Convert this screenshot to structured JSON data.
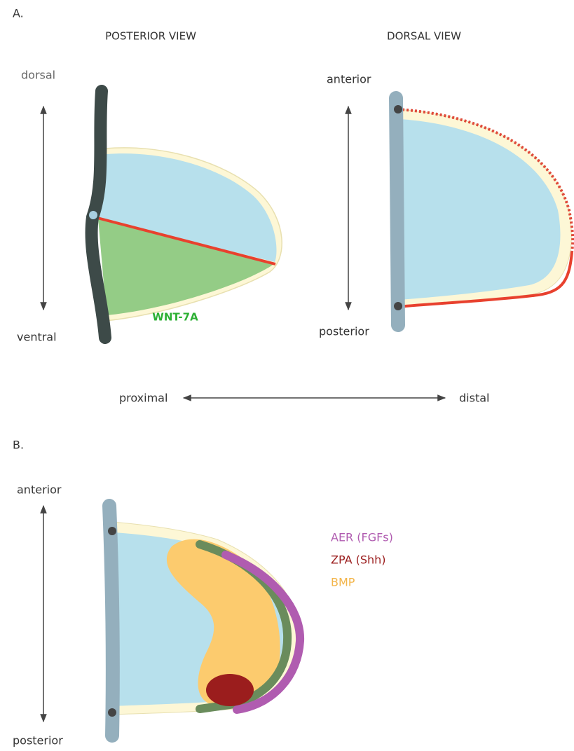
{
  "panel_a": {
    "label": "A.",
    "posterior_view": {
      "title": "POSTERIOR VIEW",
      "top": "dorsal",
      "bottom": "ventral",
      "marker": "WNT-7A"
    },
    "dorsal_view": {
      "title": "DORSAL VIEW",
      "top": "anterior",
      "bottom": "posterior"
    },
    "axis": {
      "left": "proximal",
      "right": "distal"
    }
  },
  "panel_b": {
    "label": "B.",
    "top": "anterior",
    "bottom": "posterior",
    "legend": [
      {
        "text": "AER (FGFs)"
      },
      {
        "text": "ZPA (Shh)"
      },
      {
        "text": "BMP"
      }
    ]
  }
}
